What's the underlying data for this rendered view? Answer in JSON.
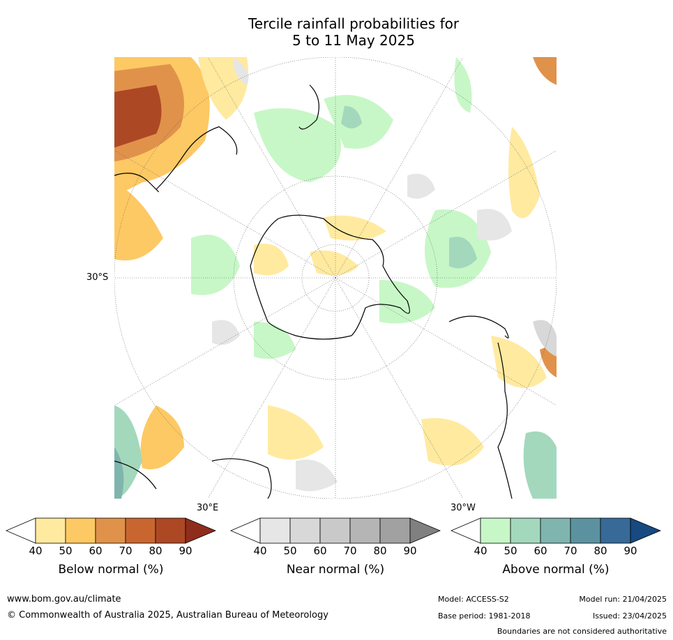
{
  "title_line1": "Tercile rainfall probabilities for",
  "title_line2": "5 to 11 May 2025",
  "map": {
    "lat_label": "30°S",
    "lon_label_east": "30°E",
    "lon_label_west": "30°W"
  },
  "colorbars": [
    {
      "label": "Below normal (%)",
      "ticks": [
        "40",
        "50",
        "60",
        "70",
        "80",
        "90"
      ],
      "colors": [
        "#ffeaa0",
        "#fdc964",
        "#e0924a",
        "#c96630",
        "#ad4825",
        "#8e2d1c"
      ]
    },
    {
      "label": "Near normal (%)",
      "ticks": [
        "40",
        "50",
        "60",
        "70",
        "80",
        "90"
      ],
      "colors": [
        "#e6e6e6",
        "#d8d8d8",
        "#c9c9c9",
        "#b5b5b5",
        "#a1a1a1",
        "#808080"
      ]
    },
    {
      "label": "Above normal (%)",
      "ticks": [
        "40",
        "50",
        "60",
        "70",
        "80",
        "90"
      ],
      "colors": [
        "#c7f7c7",
        "#a3d8bd",
        "#7fb5ae",
        "#5c92a0",
        "#386a98",
        "#164a80"
      ]
    }
  ],
  "footer": {
    "website": "www.bom.gov.au/climate",
    "copyright": "© Commonwealth of Australia 2025, Australian Bureau of Meteorology",
    "model": "Model: ACCESS-S2",
    "base_period": "Base period: 1981-2018",
    "model_run": "Model run: 21/04/2025",
    "issued": "Issued: 23/04/2025",
    "disclaimer": "Boundaries are not considered authoritative"
  }
}
